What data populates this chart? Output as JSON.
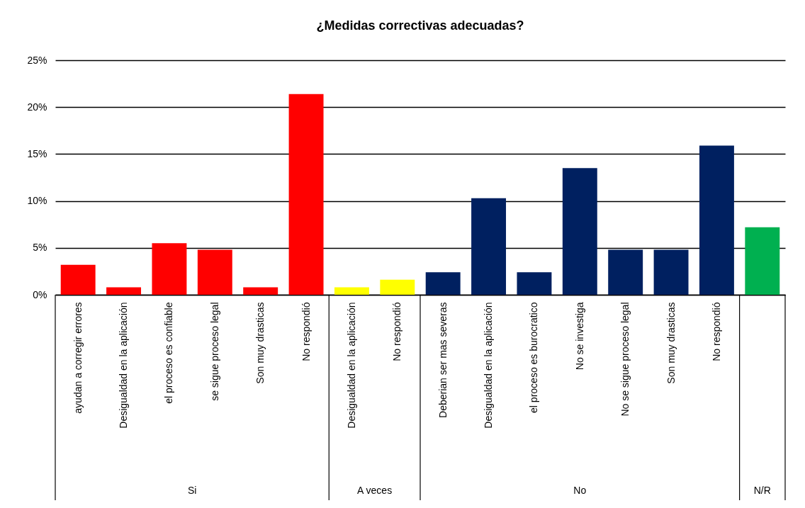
{
  "chart_data": {
    "type": "bar",
    "title": "¿Medidas correctivas adecuadas?",
    "categories": [
      "ayudan a corregir errores",
      "Desigualdad en la aplicación",
      "el proceso es confiable",
      "se sigue proceso legal",
      "Son muy drasticas",
      "No respondió",
      "Desigualdad en la aplicación",
      "No respondió",
      "Deberian ser mas severas",
      "Desigualdad en la aplicación",
      "el proceso es burocratico",
      "No se investiga",
      "No se sigue proceso legal",
      "Son muy drasticas",
      "No respondió",
      null
    ],
    "values": [
      3.2,
      0.8,
      5.5,
      4.8,
      0.8,
      21.4,
      0.8,
      1.6,
      2.4,
      10.3,
      2.4,
      13.5,
      4.8,
      4.8,
      15.9,
      7.2
    ],
    "colors": [
      "#ff0000",
      "#ff0000",
      "#ff0000",
      "#ff0000",
      "#ff0000",
      "#ff0000",
      "#ffff00",
      "#ffff00",
      "#002060",
      "#002060",
      "#002060",
      "#002060",
      "#002060",
      "#002060",
      "#002060",
      "#00b050"
    ],
    "annotations": [
      "Si",
      "A veces",
      "No",
      "N/R"
    ],
    "ylim": [
      0,
      25
    ],
    "yticks": [
      {
        "value": 0,
        "label": "0%"
      },
      {
        "value": 5,
        "label": "5%"
      },
      {
        "value": 10,
        "label": "10%"
      },
      {
        "value": 15,
        "label": "15%"
      },
      {
        "value": 20,
        "label": "20%"
      },
      {
        "value": 25,
        "label": "25%"
      }
    ],
    "grid": "y",
    "legend": false
  }
}
